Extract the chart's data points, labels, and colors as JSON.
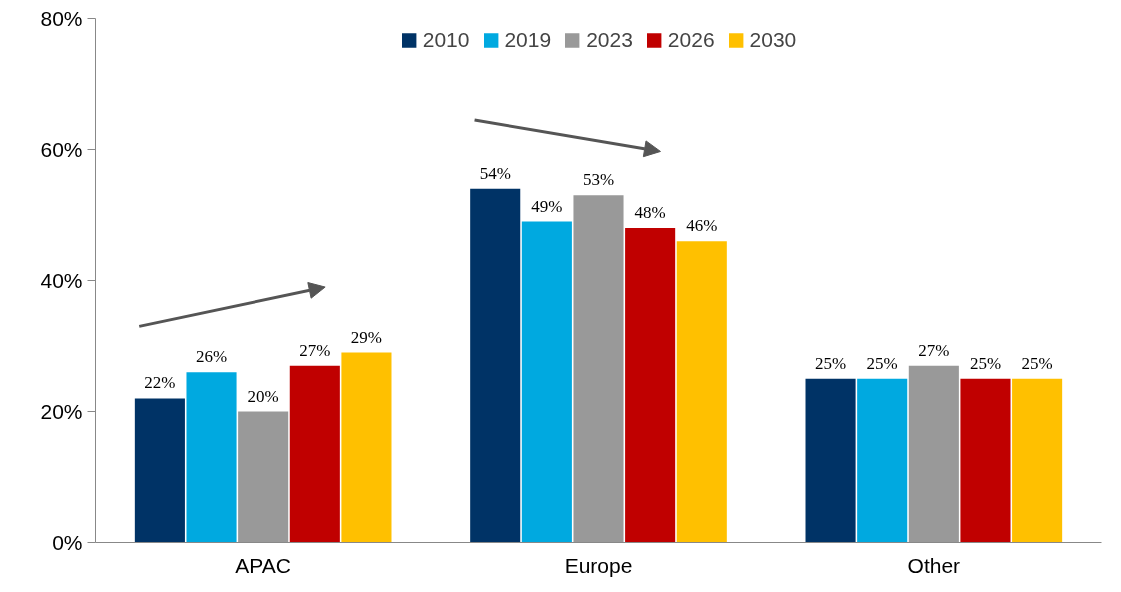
{
  "chart_data": {
    "type": "bar",
    "categories": [
      "APAC",
      "Europe",
      "Other"
    ],
    "series": [
      {
        "name": "2010",
        "color": "#003366",
        "values": [
          22,
          54,
          25
        ],
        "value_labels": [
          "22%",
          "54%",
          "25%"
        ]
      },
      {
        "name": "2019",
        "color": "#00a9e0",
        "values": [
          26,
          49,
          25
        ],
        "value_labels": [
          "26%",
          "49%",
          "25%"
        ]
      },
      {
        "name": "2023",
        "color": "#999999",
        "values": [
          20,
          53,
          27
        ],
        "value_labels": [
          "20%",
          "53%",
          "27%"
        ]
      },
      {
        "name": "2026",
        "color": "#c00000",
        "values": [
          27,
          48,
          25
        ],
        "value_labels": [
          "27%",
          "48%",
          "25%"
        ]
      },
      {
        "name": "2030",
        "color": "#ffc000",
        "values": [
          29,
          46,
          25
        ],
        "value_labels": [
          "29%",
          "46%",
          "25%"
        ]
      }
    ],
    "ylim": [
      0,
      80
    ],
    "yticks": [
      {
        "value": 0,
        "label": "0%"
      },
      {
        "value": 20,
        "label": "20%"
      },
      {
        "value": 40,
        "label": "40%"
      },
      {
        "value": 60,
        "label": "60%"
      },
      {
        "value": 80,
        "label": "80%"
      }
    ],
    "grid": false,
    "legend": "top"
  }
}
